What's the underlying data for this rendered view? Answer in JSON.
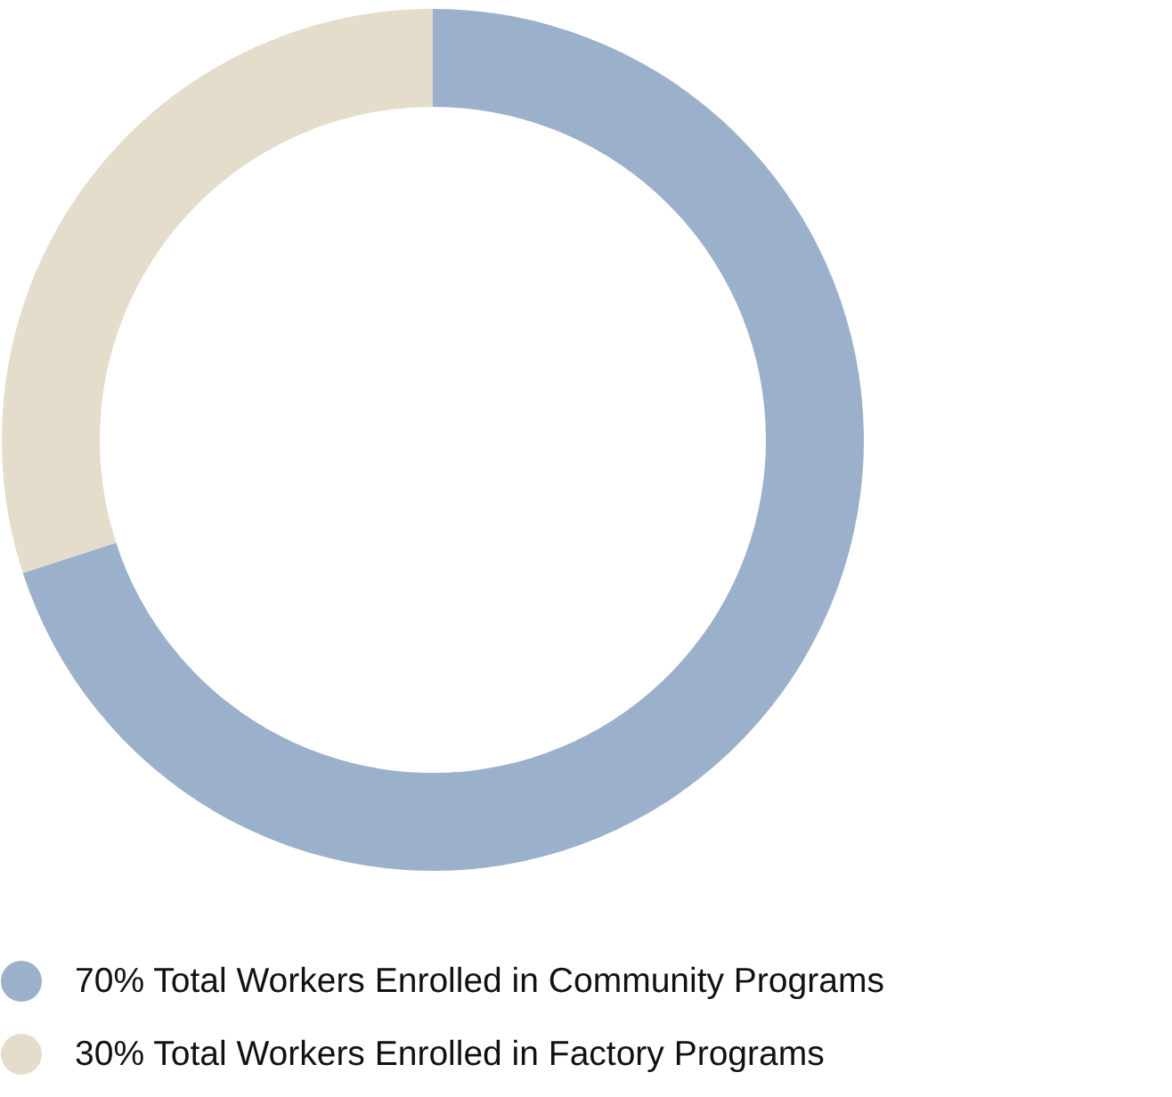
{
  "chart_data": {
    "type": "donut",
    "categories": [
      "Total Workers Enrolled in Community Programs",
      "Total Workers Enrolled in Factory Programs"
    ],
    "values": [
      70,
      30
    ],
    "colors": [
      "#9bb1cb",
      "#e4ddcc"
    ],
    "value_labels": [
      "70%",
      "30%"
    ],
    "legend": "bottom"
  }
}
